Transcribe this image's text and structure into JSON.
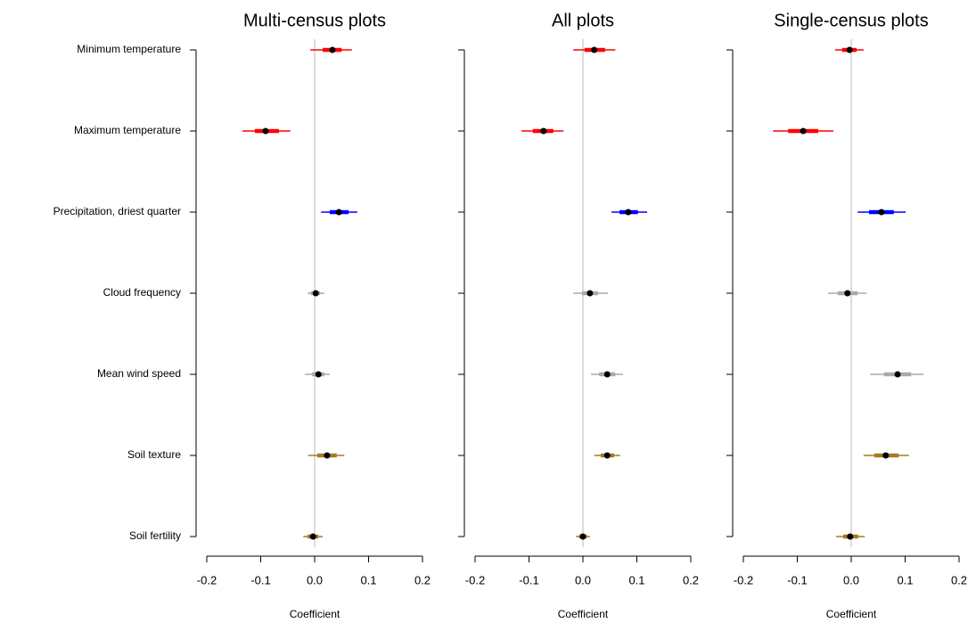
{
  "chart_data": [
    {
      "type": "forest",
      "title": "Multi-census plots",
      "xlabel": "Coefficient",
      "categories": [
        "Minimum temperature",
        "Maximum temperature",
        "Precipitation, driest quarter",
        "Cloud frequency",
        "Mean wind speed",
        "Soil texture",
        "Soil fertility"
      ],
      "colors": [
        "#ff0000",
        "#ff0000",
        "#0000ff",
        "#aaaaaa",
        "#aaaaaa",
        "#a57a22",
        "#a57a22"
      ],
      "point_color": "#000000",
      "values": [
        0.033,
        -0.091,
        0.045,
        0.002,
        0.007,
        0.023,
        -0.003
      ],
      "ci_outer": [
        [
          -0.008,
          0.069
        ],
        [
          -0.134,
          -0.045
        ],
        [
          0.012,
          0.079
        ],
        [
          -0.013,
          0.018
        ],
        [
          -0.018,
          0.028
        ],
        [
          -0.012,
          0.055
        ],
        [
          -0.021,
          0.015
        ]
      ],
      "ci_inner": [
        [
          0.015,
          0.05
        ],
        [
          -0.111,
          -0.066
        ],
        [
          0.028,
          0.063
        ],
        [
          -0.007,
          0.01
        ],
        [
          -0.005,
          0.018
        ],
        [
          0.005,
          0.041
        ],
        [
          -0.013,
          0.007
        ]
      ],
      "xlim": [
        -0.2,
        0.2
      ],
      "xticks": [
        -0.2,
        -0.1,
        {
          "value": 0,
          "label": "0.0"
        },
        0.1,
        0.2
      ]
    },
    {
      "type": "forest",
      "title": "All plots",
      "xlabel": "Coefficient",
      "colors": [
        "#ff0000",
        "#ff0000",
        "#0000ff",
        "#aaaaaa",
        "#aaaaaa",
        "#a57a22",
        "#a57a22"
      ],
      "point_color": "#000000",
      "values": [
        0.021,
        -0.073,
        0.084,
        0.013,
        0.045,
        0.045,
        0.0
      ],
      "ci_outer": [
        [
          -0.018,
          0.06
        ],
        [
          -0.114,
          -0.036
        ],
        [
          0.053,
          0.119
        ],
        [
          -0.018,
          0.046
        ],
        [
          0.015,
          0.074
        ],
        [
          0.021,
          0.069
        ],
        [
          -0.013,
          0.013
        ]
      ],
      "ci_inner": [
        [
          0.003,
          0.041
        ],
        [
          -0.093,
          -0.055
        ],
        [
          0.068,
          0.102
        ],
        [
          -0.002,
          0.028
        ],
        [
          0.03,
          0.06
        ],
        [
          0.033,
          0.058
        ],
        [
          -0.007,
          0.007
        ]
      ],
      "xlim": [
        -0.2,
        0.2
      ],
      "xticks": [
        -0.2,
        -0.1,
        {
          "value": 0,
          "label": "0.0"
        },
        0.1,
        0.2
      ]
    },
    {
      "type": "forest",
      "title": "Single-census plots",
      "xlabel": "Coefficient",
      "colors": [
        "#ff0000",
        "#ff0000",
        "#0000ff",
        "#aaaaaa",
        "#aaaaaa",
        "#a57a22",
        "#a57a22"
      ],
      "point_color": "#000000",
      "values": [
        -0.003,
        -0.089,
        0.056,
        -0.007,
        0.086,
        0.064,
        -0.002
      ],
      "ci_outer": [
        [
          -0.03,
          0.023
        ],
        [
          -0.145,
          -0.033
        ],
        [
          0.012,
          0.101
        ],
        [
          -0.043,
          0.028
        ],
        [
          0.035,
          0.134
        ],
        [
          0.023,
          0.107
        ],
        [
          -0.028,
          0.025
        ]
      ],
      "ci_inner": [
        [
          -0.017,
          0.01
        ],
        [
          -0.117,
          -0.061
        ],
        [
          0.033,
          0.079
        ],
        [
          -0.025,
          0.012
        ],
        [
          0.061,
          0.111
        ],
        [
          0.043,
          0.088
        ],
        [
          -0.015,
          0.013
        ]
      ],
      "xlim": [
        -0.2,
        0.2
      ],
      "xticks": [
        -0.2,
        -0.1,
        {
          "value": 0,
          "label": "0.0"
        },
        0.1,
        0.2
      ]
    }
  ]
}
